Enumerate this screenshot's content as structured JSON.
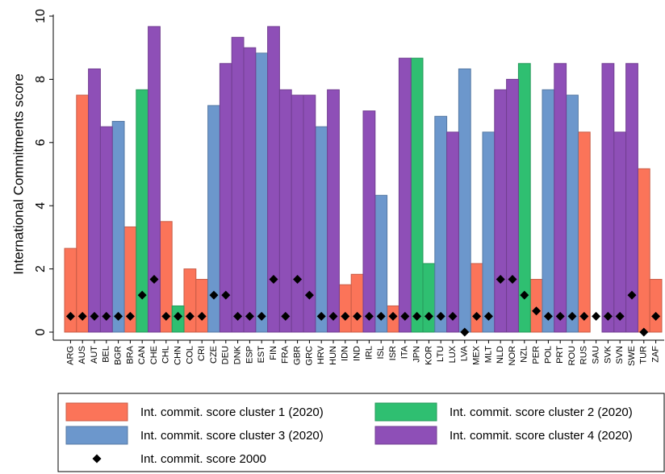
{
  "chart_data": {
    "type": "bar",
    "y_label": "International Commitments score",
    "categories": [
      "ARG",
      "AUS",
      "AUT",
      "BEL",
      "BGR",
      "BRA",
      "CAN",
      "CHE",
      "CHL",
      "CHN",
      "COL",
      "CRI",
      "CZE",
      "DEU",
      "DNK",
      "ESP",
      "EST",
      "FIN",
      "FRA",
      "GBR",
      "GRC",
      "HRV",
      "HUN",
      "IDN",
      "IND",
      "IRL",
      "ISL",
      "ISR",
      "ITA",
      "JPN",
      "KOR",
      "LTU",
      "LUX",
      "LVA",
      "MEX",
      "MLT",
      "NLD",
      "NOR",
      "NZL",
      "PER",
      "POL",
      "PRT",
      "ROU",
      "RUS",
      "SAU",
      "SVK",
      "SVN",
      "SWE",
      "TUR",
      "ZAF"
    ],
    "series": [
      {
        "name": "Int. commit. score cluster 1 (2020)",
        "color": "#fb7459",
        "values": [
          2.65,
          7.5,
          null,
          null,
          null,
          3.33,
          null,
          null,
          3.5,
          null,
          2.0,
          1.67,
          null,
          null,
          null,
          null,
          null,
          null,
          null,
          null,
          null,
          null,
          null,
          1.5,
          1.83,
          null,
          null,
          0.83,
          null,
          null,
          null,
          null,
          null,
          null,
          2.17,
          null,
          null,
          null,
          null,
          1.67,
          null,
          null,
          null,
          6.33,
          0,
          null,
          null,
          null,
          5.17,
          1.67
        ]
      },
      {
        "name": "Int. commit. score cluster 2 (2020)",
        "color": "#2fbf71",
        "values": [
          null,
          null,
          null,
          null,
          null,
          null,
          7.67,
          null,
          null,
          0.83,
          null,
          null,
          null,
          null,
          null,
          null,
          null,
          null,
          null,
          null,
          null,
          null,
          null,
          null,
          null,
          null,
          null,
          null,
          null,
          8.67,
          2.17,
          null,
          null,
          null,
          null,
          null,
          null,
          null,
          8.5,
          null,
          null,
          null,
          null,
          null,
          null,
          null,
          null,
          null,
          null,
          null
        ]
      },
      {
        "name": "Int. commit. score cluster 3 (2020)",
        "color": "#6c97cc",
        "values": [
          null,
          null,
          null,
          null,
          6.67,
          null,
          null,
          null,
          null,
          null,
          null,
          null,
          7.17,
          null,
          null,
          null,
          8.83,
          null,
          null,
          null,
          null,
          6.5,
          null,
          null,
          null,
          null,
          4.33,
          null,
          null,
          null,
          null,
          6.83,
          null,
          8.33,
          null,
          6.33,
          null,
          null,
          null,
          null,
          7.67,
          null,
          7.5,
          null,
          null,
          null,
          null,
          null,
          null,
          null
        ]
      },
      {
        "name": "Int. commit. score cluster 4 (2020)",
        "color": "#8e4fb7",
        "values": [
          null,
          null,
          8.33,
          6.5,
          null,
          null,
          null,
          9.67,
          null,
          null,
          null,
          null,
          null,
          8.5,
          9.33,
          9.0,
          null,
          9.67,
          7.67,
          7.5,
          7.5,
          null,
          7.67,
          null,
          null,
          7.0,
          null,
          null,
          8.67,
          null,
          null,
          null,
          6.33,
          null,
          null,
          null,
          7.67,
          8.0,
          null,
          null,
          null,
          8.5,
          null,
          null,
          null,
          8.5,
          6.33,
          8.5,
          null,
          null
        ]
      },
      {
        "name": "Int. commit. score 2000",
        "color": "#000000",
        "mark": "diamond",
        "values": [
          0.5,
          0.5,
          0.5,
          0.5,
          0.5,
          0.5,
          1.17,
          1.67,
          0.5,
          0.5,
          0.5,
          0.5,
          1.17,
          1.17,
          0.5,
          0.5,
          0.5,
          1.67,
          0.5,
          1.67,
          1.17,
          0.5,
          0.5,
          0.5,
          0.5,
          0.5,
          0.5,
          0.5,
          0.5,
          0.5,
          0.5,
          0.5,
          0.5,
          0,
          0.5,
          0.5,
          1.67,
          1.67,
          1.17,
          0.67,
          0.5,
          0.5,
          0.5,
          0.5,
          0.5,
          0.5,
          0.5,
          1.17,
          0,
          0.5
        ]
      }
    ],
    "ylim": [
      0,
      10
    ],
    "yticks": [
      0,
      2,
      4,
      6,
      8,
      10
    ]
  }
}
